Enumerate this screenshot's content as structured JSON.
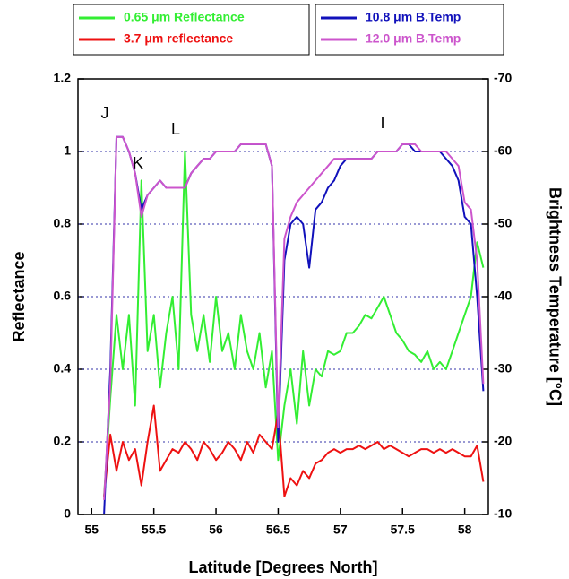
{
  "chart_data": {
    "type": "line",
    "x_label": "Latitude [Degrees North]",
    "y_label": "Reflectance",
    "y2_label": "Brightness Temperature [°C]",
    "annotations": [
      "J",
      "K",
      "L",
      "I"
    ],
    "grid": true,
    "xlim": [
      54.89,
      58.19
    ],
    "xticks": [
      55,
      55.5,
      56,
      56.5,
      57,
      57.5,
      58
    ],
    "ylim": [
      0,
      1.2
    ],
    "yticks": [
      0,
      0.2,
      0.4,
      0.6,
      0.8,
      1,
      1.2
    ],
    "y2lim": [
      -10,
      -70
    ],
    "y2ticks": [
      -10,
      -20,
      -30,
      -40,
      -50,
      -60,
      -70
    ],
    "x": [
      55.1,
      55.15,
      55.2,
      55.25,
      55.3,
      55.35,
      55.4,
      55.45,
      55.5,
      55.55,
      55.6,
      55.65,
      55.7,
      55.75,
      55.8,
      55.85,
      55.9,
      55.95,
      56.0,
      56.05,
      56.1,
      56.15,
      56.2,
      56.25,
      56.3,
      56.35,
      56.4,
      56.45,
      56.5,
      56.55,
      56.6,
      56.65,
      56.7,
      56.75,
      56.8,
      56.85,
      56.9,
      56.95,
      57.0,
      57.05,
      57.1,
      57.15,
      57.2,
      57.25,
      57.3,
      57.35,
      57.4,
      57.45,
      57.5,
      57.55,
      57.6,
      57.65,
      57.7,
      57.75,
      57.8,
      57.85,
      57.9,
      57.95,
      58.0,
      58.05,
      58.1,
      58.15
    ],
    "series": [
      {
        "name": "0.65 μm Reflectance",
        "color": "#33ee33",
        "axis": "y",
        "values": [
          0.05,
          0.32,
          0.55,
          0.4,
          0.55,
          0.3,
          0.92,
          0.45,
          0.55,
          0.35,
          0.5,
          0.6,
          0.4,
          1.0,
          0.55,
          0.45,
          0.55,
          0.42,
          0.6,
          0.45,
          0.5,
          0.4,
          0.55,
          0.45,
          0.4,
          0.5,
          0.35,
          0.45,
          0.15,
          0.3,
          0.4,
          0.25,
          0.45,
          0.3,
          0.4,
          0.38,
          0.45,
          0.44,
          0.45,
          0.5,
          0.5,
          0.52,
          0.55,
          0.54,
          0.57,
          0.6,
          0.55,
          0.5,
          0.48,
          0.45,
          0.44,
          0.42,
          0.45,
          0.4,
          0.42,
          0.4,
          0.45,
          0.5,
          0.55,
          0.6,
          0.75,
          0.68
        ]
      },
      {
        "name": "3.7 μm reflectance",
        "color": "#ee1111",
        "axis": "y",
        "values": [
          0.05,
          0.22,
          0.12,
          0.2,
          0.15,
          0.18,
          0.08,
          0.2,
          0.3,
          0.12,
          0.15,
          0.18,
          0.17,
          0.2,
          0.18,
          0.15,
          0.2,
          0.18,
          0.15,
          0.17,
          0.2,
          0.18,
          0.15,
          0.2,
          0.17,
          0.22,
          0.2,
          0.18,
          0.28,
          0.05,
          0.1,
          0.08,
          0.12,
          0.1,
          0.14,
          0.15,
          0.17,
          0.18,
          0.17,
          0.18,
          0.18,
          0.19,
          0.18,
          0.19,
          0.2,
          0.18,
          0.19,
          0.18,
          0.17,
          0.16,
          0.17,
          0.18,
          0.18,
          0.17,
          0.18,
          0.17,
          0.18,
          0.17,
          0.16,
          0.16,
          0.19,
          0.09
        ]
      },
      {
        "name": "10.8 μm B.Temp",
        "color": "#1111bb",
        "axis": "y2",
        "values": [
          -10,
          -30,
          -62,
          -62,
          -60,
          -57,
          -52,
          -54,
          -55,
          -56,
          -55,
          -55,
          -55,
          -55,
          -57,
          -58,
          -59,
          -59,
          -60,
          -60,
          -60,
          -60,
          -61,
          -61,
          -61,
          -61,
          -61,
          -58,
          -20,
          -45,
          -50,
          -51,
          -50,
          -44,
          -52,
          -53,
          -55,
          -56,
          -58,
          -59,
          -59,
          -59,
          -59,
          -59,
          -60,
          -60,
          -60,
          -60,
          -61,
          -61,
          -60,
          -60,
          -60,
          -60,
          -60,
          -59,
          -58,
          -56,
          -51,
          -50,
          -40,
          -27
        ]
      },
      {
        "name": "12.0 μm B.Temp",
        "color": "#cc55cc",
        "axis": "y2",
        "values": [
          -12,
          -28,
          -62,
          -62,
          -60,
          -57,
          -51,
          -54,
          -55,
          -56,
          -55,
          -55,
          -55,
          -55,
          -57,
          -58,
          -59,
          -59,
          -60,
          -60,
          -60,
          -60,
          -61,
          -61,
          -61,
          -61,
          -61,
          -58,
          -22,
          -48,
          -51,
          -53,
          -54,
          -55,
          -56,
          -57,
          -58,
          -59,
          -59,
          -59,
          -59,
          -59,
          -59,
          -59,
          -60,
          -60,
          -60,
          -60,
          -61,
          -61,
          -61,
          -60,
          -60,
          -60,
          -60,
          -60,
          -59,
          -58,
          -53,
          -52,
          -45,
          -28
        ]
      }
    ]
  }
}
